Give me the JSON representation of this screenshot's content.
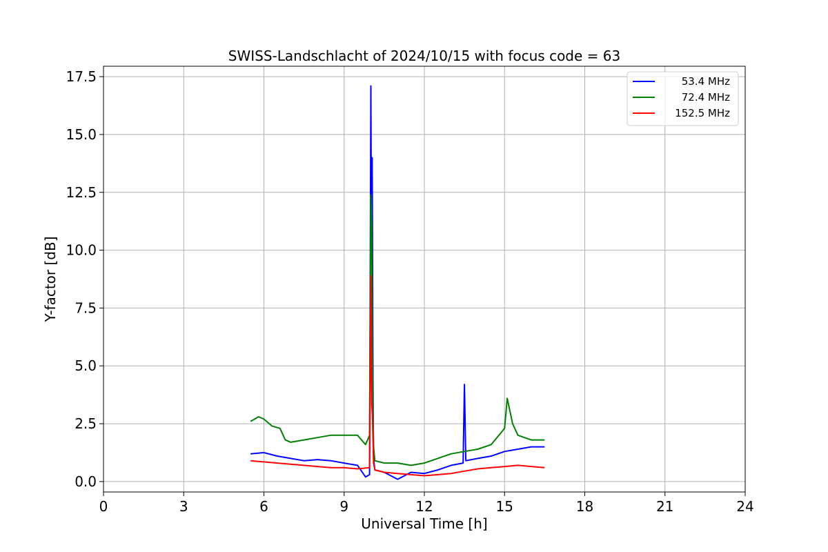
{
  "chart_data": {
    "type": "line",
    "title": "SWISS-Landschlacht of 2024/10/15 with focus code = 63",
    "xlabel": "Universal Time [h]",
    "ylabel": "Y-factor [dB]",
    "xlim": [
      0,
      24
    ],
    "ylim": [
      -0.45,
      17.95
    ],
    "xticks": [
      0,
      3,
      6,
      9,
      12,
      15,
      18,
      21,
      24
    ],
    "xtick_labels": [
      "0",
      "3",
      "6",
      "9",
      "12",
      "15",
      "18",
      "21",
      "24"
    ],
    "yticks": [
      0,
      2.5,
      5,
      7.5,
      10,
      12.5,
      15,
      17.5
    ],
    "ytick_labels": [
      "0.0",
      "2.5",
      "5.0",
      "7.5",
      "10.0",
      "12.5",
      "15.0",
      "17.5"
    ],
    "grid": true,
    "legend_position": "top-right",
    "series": [
      {
        "name": "53.4 MHz",
        "color": "#0000ff",
        "x": [
          5.5,
          6.0,
          6.5,
          7.0,
          7.5,
          8.0,
          8.5,
          9.0,
          9.5,
          9.8,
          9.95,
          10.0,
          10.02,
          10.05,
          10.08,
          10.1,
          10.15,
          10.5,
          11.0,
          11.5,
          12.0,
          12.5,
          13.0,
          13.45,
          13.5,
          13.55,
          14.0,
          14.5,
          15.0,
          15.5,
          16.0,
          16.5
        ],
        "y": [
          1.2,
          1.25,
          1.1,
          1.0,
          0.9,
          0.95,
          0.9,
          0.8,
          0.7,
          0.2,
          0.3,
          17.1,
          10.0,
          14.0,
          4.0,
          1.0,
          0.5,
          0.4,
          0.1,
          0.4,
          0.35,
          0.5,
          0.7,
          0.8,
          4.2,
          0.9,
          1.0,
          1.1,
          1.3,
          1.4,
          1.5,
          1.5
        ]
      },
      {
        "name": "72.4 MHz",
        "color": "#008000",
        "x": [
          5.5,
          5.8,
          6.0,
          6.3,
          6.6,
          6.8,
          7.0,
          7.5,
          8.0,
          8.5,
          9.0,
          9.5,
          9.8,
          9.95,
          10.0,
          10.03,
          10.07,
          10.1,
          10.15,
          10.5,
          11.0,
          11.5,
          12.0,
          12.5,
          13.0,
          13.5,
          14.0,
          14.5,
          15.0,
          15.1,
          15.3,
          15.5,
          16.0,
          16.5
        ],
        "y": [
          2.6,
          2.8,
          2.7,
          2.4,
          2.3,
          1.8,
          1.7,
          1.8,
          1.9,
          2.0,
          2.0,
          2.0,
          1.6,
          2.0,
          12.4,
          11.0,
          3.5,
          1.5,
          0.9,
          0.8,
          0.8,
          0.7,
          0.8,
          1.0,
          1.2,
          1.3,
          1.4,
          1.6,
          2.3,
          3.6,
          2.5,
          2.0,
          1.8,
          1.8
        ]
      },
      {
        "name": "152.5 MHz",
        "color": "#ff0000",
        "x": [
          5.5,
          6.0,
          6.5,
          7.0,
          7.5,
          8.0,
          8.5,
          9.0,
          9.5,
          9.95,
          10.0,
          10.03,
          10.06,
          10.1,
          10.15,
          10.5,
          11.0,
          11.5,
          12.0,
          12.5,
          13.0,
          13.5,
          14.0,
          14.5,
          15.0,
          15.5,
          16.0,
          16.5
        ],
        "y": [
          0.9,
          0.85,
          0.8,
          0.75,
          0.7,
          0.65,
          0.6,
          0.6,
          0.55,
          0.6,
          8.9,
          3.4,
          2.8,
          0.8,
          0.5,
          0.4,
          0.35,
          0.3,
          0.25,
          0.3,
          0.35,
          0.45,
          0.55,
          0.6,
          0.65,
          0.7,
          0.65,
          0.6
        ]
      }
    ]
  }
}
